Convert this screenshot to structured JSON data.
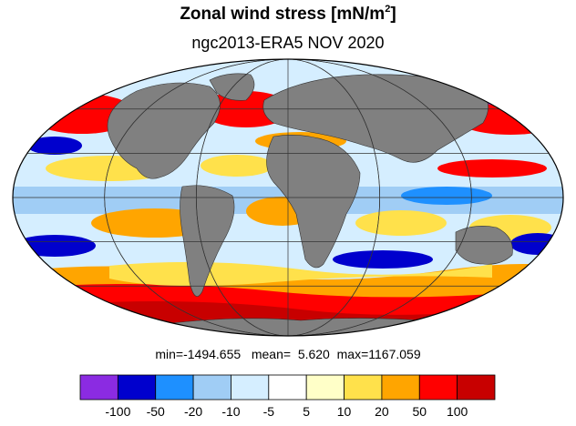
{
  "title": "Zonal wind stress [mN/m",
  "title_superscript": "2",
  "title_suffix": "]",
  "subtitle": "ngc2013-ERA5  NOV 2020",
  "stats": {
    "min_label": "min=",
    "min": "-1494.655",
    "mean_label": "mean=",
    "mean": "5.620",
    "max_label": "max=",
    "max": "1167.059"
  },
  "colorbar": {
    "colors": [
      "#8b2be2",
      "#0000cd",
      "#1e90ff",
      "#a0cdf5",
      "#d5eeff",
      "#ffffff",
      "#ffffc8",
      "#ffe14b",
      "#ffa500",
      "#ff0000",
      "#c80000"
    ],
    "labels": [
      "-100",
      "-50",
      "-20",
      "-10",
      "-5",
      "5",
      "10",
      "20",
      "50",
      "100"
    ]
  },
  "map": {
    "projection": "Mollweide",
    "land_color": "#808080",
    "ocean_palette_ref": "colorbar.colors"
  }
}
